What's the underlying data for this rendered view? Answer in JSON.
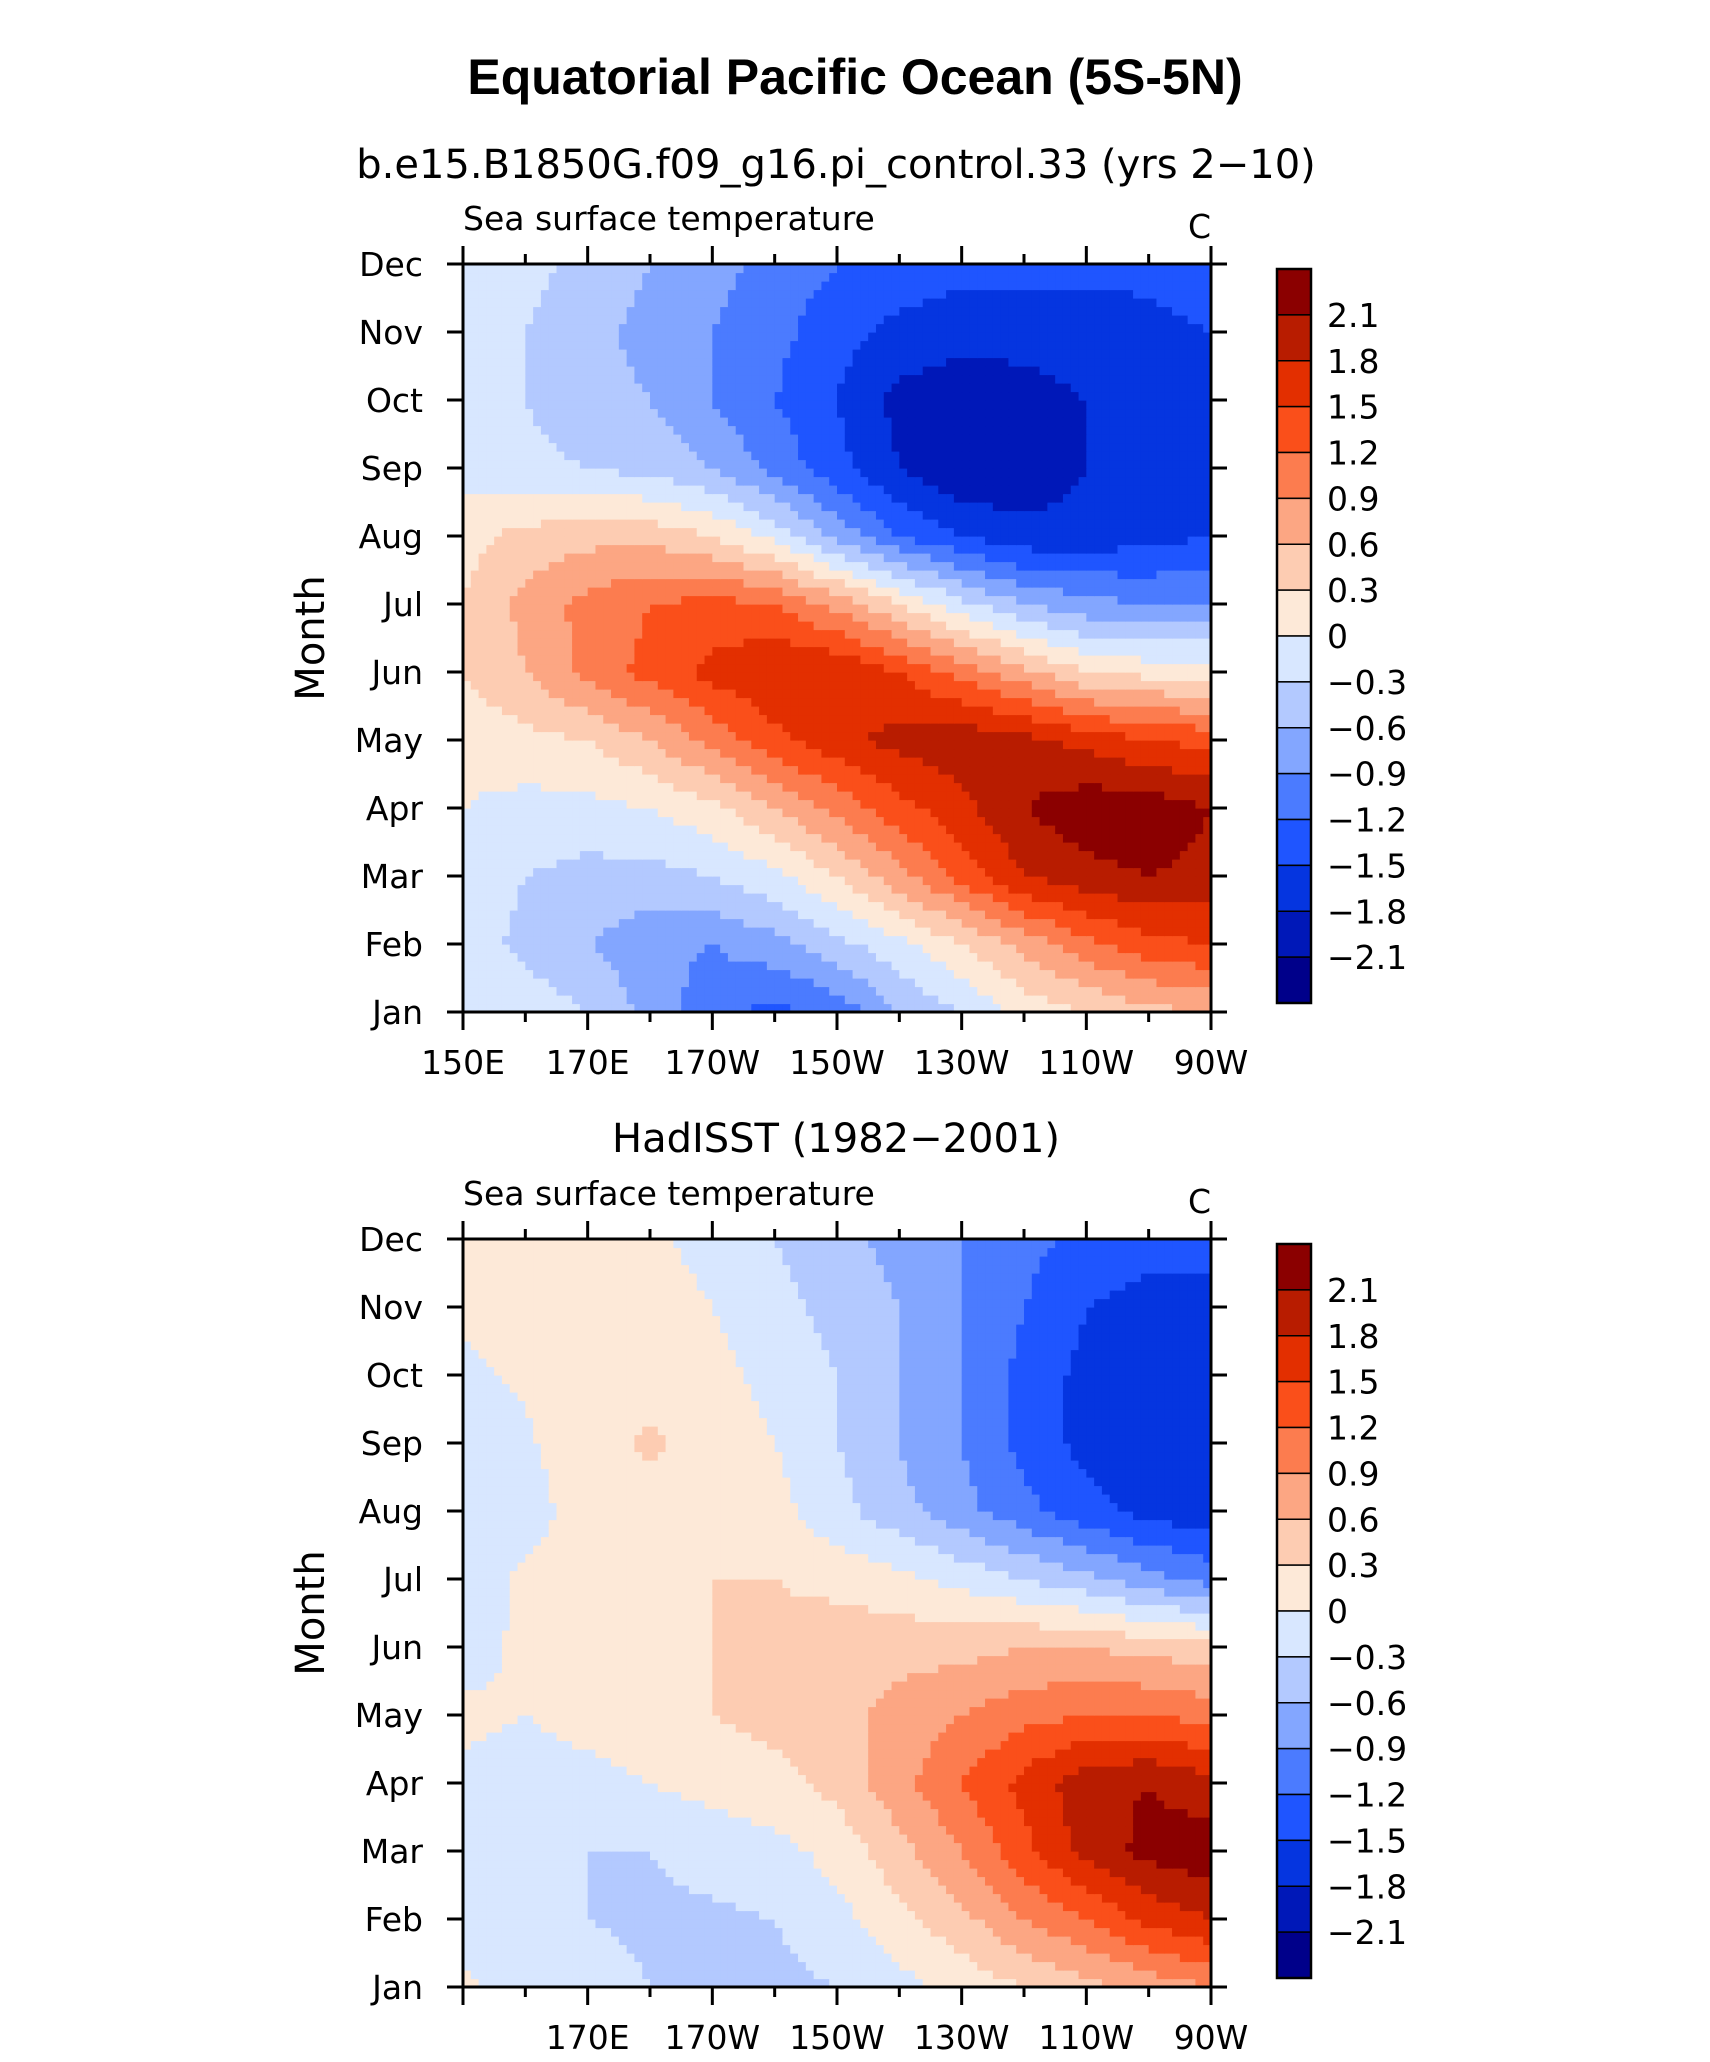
{
  "figure": {
    "title": "Equatorial Pacific Ocean (5S-5N)"
  },
  "chart_data": [
    {
      "type": "heatmap",
      "panel_title": "b.e15.B1850G.f09_g16.pi_control.33 (yrs 2−10)",
      "left_string": "Sea surface temperature",
      "right_string": "C",
      "ylabel": "Month",
      "xlabel": "",
      "x_ticks": [
        "150E",
        "170E",
        "170W",
        "150W",
        "130W",
        "110W",
        "90W"
      ],
      "y_ticks": [
        "Jan",
        "Feb",
        "Mar",
        "Apr",
        "May",
        "Jun",
        "Jul",
        "Aug",
        "Sep",
        "Oct",
        "Nov",
        "Dec"
      ],
      "x": [
        150,
        160,
        170,
        180,
        190,
        200,
        210,
        220,
        230,
        240,
        250,
        260,
        270
      ],
      "y": [
        "Jan",
        "Feb",
        "Mar",
        "Apr",
        "May",
        "Jun",
        "Jul",
        "Aug",
        "Sep",
        "Oct",
        "Nov",
        "Dec"
      ],
      "z": [
        [
          -0.1,
          -0.1,
          -0.3,
          -0.7,
          -1.1,
          -1.3,
          -1.1,
          -0.6,
          -0.3,
          0.1,
          0.3,
          0.5,
          0.6
        ],
        [
          -0.1,
          -0.4,
          -0.6,
          -0.8,
          -0.9,
          -0.7,
          -0.4,
          -0.1,
          0.3,
          0.7,
          1.1,
          1.4,
          1.5
        ],
        [
          -0.1,
          -0.3,
          -0.4,
          -0.4,
          -0.3,
          -0.1,
          0.3,
          0.8,
          1.3,
          1.8,
          2.0,
          2.1,
          2.0
        ],
        [
          0.0,
          -0.1,
          -0.1,
          0.0,
          0.2,
          0.6,
          1.0,
          1.4,
          1.7,
          2.1,
          2.3,
          2.3,
          2.1
        ],
        [
          0.1,
          0.2,
          0.3,
          0.6,
          1.0,
          1.4,
          1.7,
          1.9,
          2.0,
          1.9,
          1.7,
          1.5,
          1.4
        ],
        [
          0.3,
          0.6,
          1.0,
          1.3,
          1.6,
          1.8,
          1.8,
          1.5,
          1.1,
          0.7,
          0.3,
          0.2,
          0.2
        ],
        [
          0.3,
          0.7,
          1.0,
          1.2,
          1.3,
          1.2,
          0.8,
          0.3,
          -0.2,
          -0.6,
          -0.8,
          -0.9,
          -0.9
        ],
        [
          0.2,
          0.4,
          0.5,
          0.5,
          0.3,
          -0.1,
          -0.7,
          -1.2,
          -1.5,
          -1.7,
          -1.7,
          -1.6,
          -1.5
        ],
        [
          -0.1,
          -0.2,
          -0.3,
          -0.4,
          -0.6,
          -1.0,
          -1.4,
          -1.8,
          -2.1,
          -2.0,
          -1.8,
          -1.6,
          -1.5
        ],
        [
          -0.2,
          -0.3,
          -0.5,
          -0.6,
          -0.9,
          -1.2,
          -1.5,
          -1.9,
          -2.0,
          -1.9,
          -1.8,
          -1.7,
          -1.6
        ],
        [
          -0.1,
          -0.3,
          -0.5,
          -0.7,
          -0.9,
          -1.1,
          -1.4,
          -1.6,
          -1.7,
          -1.7,
          -1.7,
          -1.6,
          -1.5
        ],
        [
          0.0,
          -0.2,
          -0.4,
          -0.6,
          -0.8,
          -1.0,
          -1.2,
          -1.3,
          -1.4,
          -1.4,
          -1.4,
          -1.4,
          -1.3
        ]
      ],
      "colorbar_labels": [
        "2.1",
        "1.8",
        "1.5",
        "1.2",
        "0.9",
        "0.6",
        "0.3",
        "0",
        "−0.3",
        "−0.6",
        "−0.9",
        "−1.2",
        "−1.5",
        "−1.8",
        "−2.1"
      ]
    },
    {
      "type": "heatmap",
      "panel_title": "HadISST (1982−2001)",
      "left_string": "Sea surface temperature",
      "right_string": "C",
      "ylabel": "Month",
      "xlabel": "",
      "x_ticks": [
        "170E",
        "170W",
        "150W",
        "130W",
        "110W",
        "90W"
      ],
      "y_ticks": [
        "Jan",
        "Feb",
        "Mar",
        "Apr",
        "May",
        "Jun",
        "Jul",
        "Aug",
        "Sep",
        "Oct",
        "Nov",
        "Dec"
      ],
      "x": [
        150,
        160,
        170,
        180,
        190,
        200,
        210,
        220,
        230,
        240,
        250,
        260,
        270
      ],
      "y": [
        "Jan",
        "Feb",
        "Mar",
        "Apr",
        "May",
        "Jun",
        "Jul",
        "Aug",
        "Sep",
        "Oct",
        "Nov",
        "Dec"
      ],
      "z": [
        [
          0.05,
          -0.1,
          -0.2,
          -0.3,
          -0.4,
          -0.4,
          -0.3,
          -0.1,
          0.1,
          0.3,
          0.5,
          0.7,
          0.9
        ],
        [
          -0.1,
          -0.2,
          -0.3,
          -0.35,
          -0.35,
          -0.3,
          -0.1,
          0.2,
          0.5,
          0.9,
          1.2,
          1.6,
          1.8
        ],
        [
          -0.1,
          -0.15,
          -0.3,
          -0.3,
          -0.2,
          -0.1,
          0.1,
          0.5,
          0.9,
          1.4,
          1.9,
          2.2,
          2.3
        ],
        [
          -0.05,
          -0.1,
          -0.1,
          0.0,
          0.1,
          0.2,
          0.4,
          0.8,
          1.2,
          1.6,
          2.0,
          2.1,
          1.9
        ],
        [
          0.05,
          0.0,
          0.1,
          0.2,
          0.3,
          0.4,
          0.5,
          0.7,
          0.9,
          1.1,
          1.2,
          1.2,
          1.1
        ],
        [
          -0.1,
          0.05,
          0.1,
          0.2,
          0.3,
          0.4,
          0.5,
          0.5,
          0.5,
          0.6,
          0.6,
          0.5,
          0.4
        ],
        [
          -0.15,
          0.05,
          0.15,
          0.2,
          0.3,
          0.3,
          0.2,
          0.1,
          -0.1,
          -0.3,
          -0.5,
          -0.8,
          -1.0
        ],
        [
          -0.25,
          -0.1,
          0.1,
          0.2,
          0.2,
          0.1,
          -0.2,
          -0.5,
          -0.8,
          -1.1,
          -1.4,
          -1.6,
          -1.7
        ],
        [
          -0.2,
          -0.05,
          0.2,
          0.35,
          0.2,
          0.0,
          -0.3,
          -0.6,
          -0.9,
          -1.3,
          -1.6,
          -1.8,
          -1.8
        ],
        [
          -0.05,
          0.05,
          0.15,
          0.2,
          0.1,
          -0.1,
          -0.3,
          -0.6,
          -0.9,
          -1.3,
          -1.6,
          -1.7,
          -1.7
        ],
        [
          0.05,
          0.1,
          0.15,
          0.15,
          0.0,
          -0.2,
          -0.4,
          -0.6,
          -0.9,
          -1.2,
          -1.5,
          -1.6,
          -1.6
        ],
        [
          0.1,
          0.1,
          0.1,
          0.05,
          -0.1,
          -0.3,
          -0.5,
          -0.7,
          -0.9,
          -1.1,
          -1.3,
          -1.4,
          -1.4
        ]
      ],
      "colorbar_labels": [
        "2.1",
        "1.8",
        "1.5",
        "1.2",
        "0.9",
        "0.6",
        "0.3",
        "0",
        "−0.3",
        "−0.6",
        "−0.9",
        "−1.2",
        "−1.5",
        "−1.8",
        "−2.1"
      ]
    }
  ],
  "colorscale": {
    "levels": [
      -2.1,
      -1.8,
      -1.5,
      -1.2,
      -0.9,
      -0.6,
      -0.3,
      0,
      0.3,
      0.6,
      0.9,
      1.2,
      1.5,
      1.8,
      2.1
    ],
    "colors": [
      "#00008a",
      "#0018b8",
      "#0535e0",
      "#1f55ff",
      "#4b7bff",
      "#83a6ff",
      "#b3c9ff",
      "#d8e7ff",
      "#fde9d8",
      "#fdccb2",
      "#fca683",
      "#fc7c4f",
      "#fa4f1a",
      "#e32f00",
      "#b81c00",
      "#8b0000"
    ]
  }
}
